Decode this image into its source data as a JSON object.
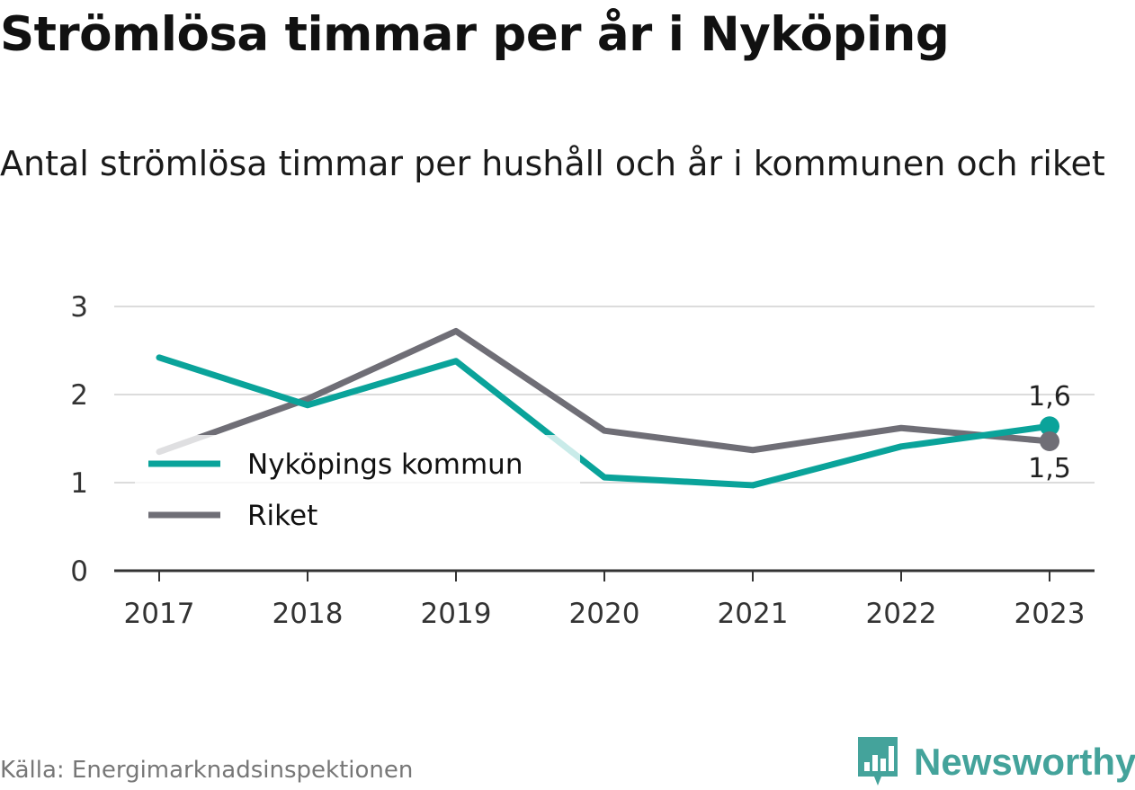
{
  "title": "Strömlösa timmar per år i Nyköping",
  "subtitle": "Antal strömlösa timmar per hushåll och år i kommunen och riket",
  "source": "Källa: Energimarknadsinspektionen",
  "logo": {
    "text": "Newsworthy",
    "icon": "bar-chart-badge-icon"
  },
  "colors": {
    "kommun": "#0aa39a",
    "riket": "#6f6e76",
    "grid": "#dcdcdc",
    "axis": "#333333",
    "logo": "#44a39b"
  },
  "chart_data": {
    "type": "line",
    "x": [
      "2017",
      "2018",
      "2019",
      "2020",
      "2021",
      "2022",
      "2023"
    ],
    "series": [
      {
        "name": "Nyköpings kommun",
        "color": "#0aa39a",
        "values": [
          2.42,
          1.88,
          2.38,
          1.06,
          0.97,
          1.41,
          1.64
        ]
      },
      {
        "name": "Riket",
        "color": "#6f6e76",
        "values": [
          1.35,
          1.95,
          2.72,
          1.59,
          1.37,
          1.62,
          1.47
        ]
      }
    ],
    "end_labels": [
      "1,6",
      "1,5"
    ],
    "y_ticks": [
      "0",
      "1",
      "2",
      "3"
    ],
    "ylim": [
      0,
      3
    ],
    "grid": true,
    "legend_position": "left"
  }
}
